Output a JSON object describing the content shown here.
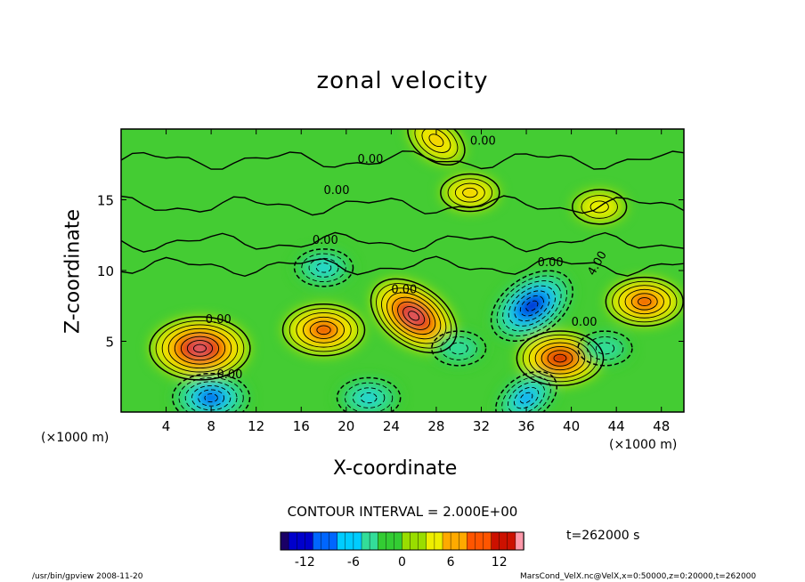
{
  "chart_data": {
    "type": "heatmap",
    "title": "zonal velocity",
    "xlabel": "X-coordinate",
    "ylabel": "Z-coordinate",
    "x_unit": "(×1000 m)",
    "xlim": [
      0,
      50
    ],
    "ylim": [
      0,
      20
    ],
    "x_ticks": [
      4,
      8,
      12,
      16,
      20,
      24,
      28,
      32,
      36,
      40,
      44,
      48
    ],
    "y_ticks": [
      5,
      10,
      15
    ],
    "contour_interval": "CONTOUR INTERVAL = 2.000E+00",
    "contour_labels": [
      "0.00",
      "0.00",
      "0.00",
      "0.00",
      "0.00",
      "0.00",
      "0.00",
      "0.00",
      "0.00",
      "4.00"
    ],
    "colorbar": {
      "ticks": [
        -12,
        -6,
        0,
        6,
        12
      ],
      "range": [
        -15,
        15
      ]
    },
    "colormap": [
      "#1a0066",
      "#0000cc",
      "#0066ff",
      "#00ccff",
      "#33dd99",
      "#33cc33",
      "#99dd00",
      "#eeee00",
      "#ffaa00",
      "#ff5500",
      "#cc1100",
      "#ff99aa"
    ],
    "features": [
      {
        "x": 7,
        "z": 4.5,
        "value": 14
      },
      {
        "x": 18,
        "z": 5.8,
        "value": 10
      },
      {
        "x": 26,
        "z": 6.8,
        "value": 13
      },
      {
        "x": 39,
        "z": 3.8,
        "value": 11
      },
      {
        "x": 46.5,
        "z": 7.8,
        "value": 9
      },
      {
        "x": 36.5,
        "z": 7.5,
        "value": -12
      },
      {
        "x": 8,
        "z": 1,
        "value": -9
      },
      {
        "x": 22,
        "z": 1,
        "value": -6
      },
      {
        "x": 36,
        "z": 1,
        "value": -7
      },
      {
        "x": 30,
        "z": 4.5,
        "value": -4
      },
      {
        "x": 43,
        "z": 4.5,
        "value": -4
      },
      {
        "x": 18,
        "z": 10.2,
        "value": -5
      },
      {
        "x": 28,
        "z": 19.2,
        "value": 6
      },
      {
        "x": 31,
        "z": 15.5,
        "value": 5
      },
      {
        "x": 42.5,
        "z": 14.5,
        "value": 4
      }
    ]
  },
  "annotations": {
    "time": "t=262000 s",
    "footer_left": "/usr/bin/gpview  2008-11-20",
    "footer_right": "MarsCond_VelX.nc@VelX,x=0:50000,z=0:20000,t=262000"
  }
}
